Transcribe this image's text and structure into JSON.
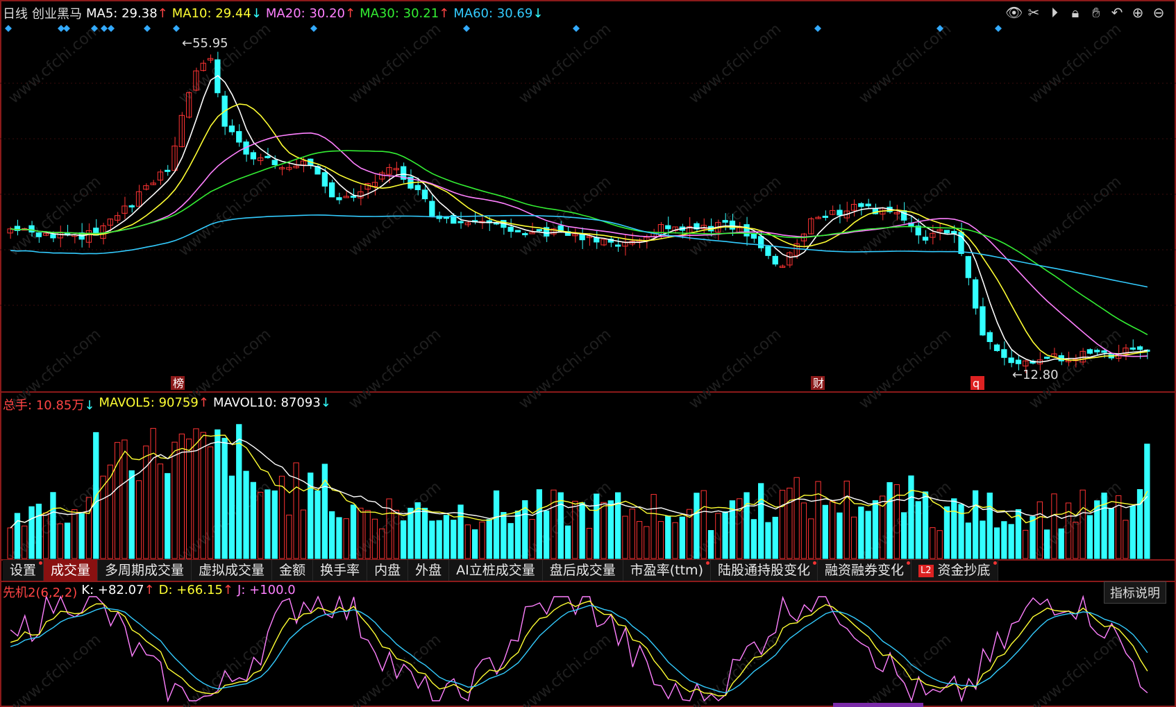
{
  "header": {
    "period": "日线",
    "stock_name": "创业黑马",
    "ma5": {
      "label": "MA5:",
      "value": "29.38",
      "arrow": "↑",
      "color": "#ffffff"
    },
    "ma10": {
      "label": "MA10:",
      "value": "29.44",
      "arrow": "↓",
      "color": "#ffff33"
    },
    "ma20": {
      "label": "MA20:",
      "value": "30.20",
      "arrow": "↑",
      "color": "#ff80ff"
    },
    "ma30": {
      "label": "MA30:",
      "value": "30.21",
      "arrow": "↑",
      "color": "#33ee33"
    },
    "ma60": {
      "label": "MA60:",
      "value": "30.69",
      "arrow": "↓",
      "color": "#33ccff"
    }
  },
  "toolbar_icons": [
    "eye-icon",
    "scissors-icon",
    "play-icon",
    "lock-icon",
    "hand-icon",
    "undo-icon",
    "zoom-in-icon",
    "zoom-out-icon"
  ],
  "price_chart": {
    "high_label": "55.95",
    "low_label": "12.80",
    "markers": [
      "榜",
      "财",
      "q"
    ]
  },
  "volume": {
    "total_label": "总手:",
    "total_value": "10.85万",
    "total_arrow": "↓",
    "mavol5_label": "MAVOL5:",
    "mavol5_value": "90759",
    "mavol5_arrow": "↑",
    "mavol10_label": "MAVOL10:",
    "mavol10_value": "87093",
    "mavol10_arrow": "↓"
  },
  "tabs": [
    {
      "label": "设置",
      "dot": true
    },
    {
      "label": "成交量",
      "dot": false,
      "active": true
    },
    {
      "label": "多周期成交量",
      "dot": false
    },
    {
      "label": "虚拟成交量",
      "dot": false
    },
    {
      "label": "金额",
      "dot": false
    },
    {
      "label": "换手率",
      "dot": false
    },
    {
      "label": "内盘",
      "dot": false
    },
    {
      "label": "外盘",
      "dot": false
    },
    {
      "label": "AI立桩成交量",
      "dot": false
    },
    {
      "label": "盘后成交量",
      "dot": false
    },
    {
      "label": "市盈率(ttm)",
      "dot": true
    },
    {
      "label": "陆股通持股变化",
      "dot": true
    },
    {
      "label": "融资融券变化",
      "dot": true
    },
    {
      "label": "资金抄底",
      "dot": true,
      "badge": "L2"
    }
  ],
  "indicator": {
    "name": "先机2(6,2,2)",
    "k_label": "K:",
    "k_value": "+82.07",
    "k_arrow": "↑",
    "d_label": "D:",
    "d_value": "+66.15",
    "d_arrow": "↑",
    "j_label": "J:",
    "j_value": "+100.0",
    "explain_button": "指标说明"
  },
  "watermark": "www.cfchi.com",
  "chart_data": {
    "type": "candlestick",
    "ma_latest": {
      "MA5": 29.38,
      "MA10": 29.44,
      "MA20": 30.2,
      "MA30": 30.21,
      "MA60": 30.69
    },
    "price_high": 55.95,
    "price_low": 12.8,
    "volume_latest": {
      "total": "10.85万",
      "MAVOL5": 90759,
      "MAVOL10": 87093
    },
    "kdj_latest": {
      "K": 82.07,
      "D": 66.15,
      "J": 100.0
    }
  }
}
